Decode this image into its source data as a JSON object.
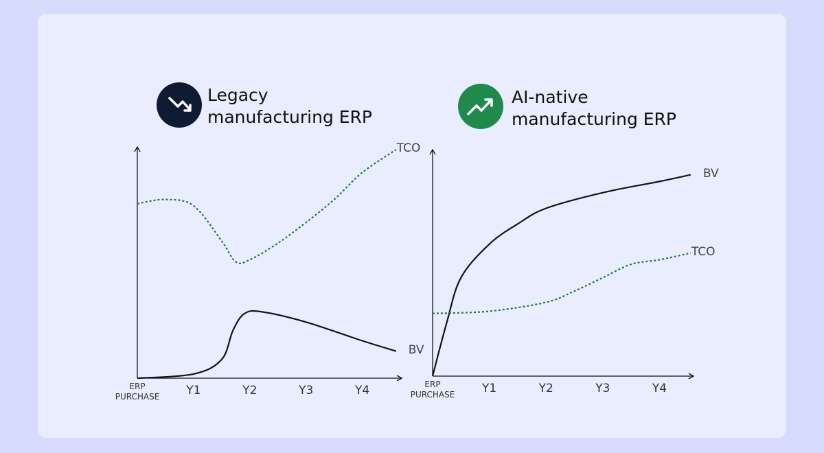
{
  "chart_data": [
    {
      "type": "line",
      "title": "Legacy manufacturing ERP",
      "xlim": [
        0,
        4.7
      ],
      "ylim": [
        0,
        110
      ],
      "xticks": [
        {
          "value": 0,
          "label": "ERP PURCHASE"
        },
        {
          "value": 1,
          "label": "Y1"
        },
        {
          "value": 2,
          "label": "Y2"
        },
        {
          "value": 3,
          "label": "Y3"
        },
        {
          "value": 4,
          "label": "Y4"
        }
      ],
      "series": [
        {
          "name": "TCO",
          "color": "#1e7a3e",
          "dashed": true,
          "x": [
            0,
            0.5,
            1.0,
            1.5,
            1.75,
            2.0,
            2.5,
            3.0,
            3.5,
            4.0,
            4.6
          ],
          "values": [
            84,
            86,
            83,
            66,
            56,
            57,
            65,
            75,
            86,
            99,
            110
          ]
        },
        {
          "name": "BV",
          "color": "#141414",
          "dashed": false,
          "x": [
            0,
            1.0,
            1.5,
            1.7,
            1.9,
            2.2,
            3.0,
            4.0,
            4.6
          ],
          "values": [
            0,
            2,
            9,
            23,
            31,
            32,
            27,
            18,
            13
          ]
        }
      ]
    },
    {
      "type": "line",
      "title": "AI-native manufacturing ERP",
      "xlim": [
        0,
        4.6
      ],
      "ylim": [
        0,
        100
      ],
      "xticks": [
        {
          "value": 0,
          "label": "ERP PURCHASE"
        },
        {
          "value": 1,
          "label": "Y1"
        },
        {
          "value": 2,
          "label": "Y2"
        },
        {
          "value": 3,
          "label": "Y3"
        },
        {
          "value": 4,
          "label": "Y4"
        }
      ],
      "series": [
        {
          "name": "BV",
          "color": "#141414",
          "dashed": false,
          "x": [
            0,
            0.25,
            0.5,
            1.0,
            1.5,
            2.0,
            3.0,
            4.0,
            4.55
          ],
          "values": [
            0,
            24,
            44,
            59,
            68,
            75,
            82,
            87,
            90
          ]
        },
        {
          "name": "TCO",
          "color": "#1e7a3e",
          "dashed": true,
          "x": [
            0,
            1.0,
            2.0,
            2.5,
            3.0,
            3.5,
            4.0,
            4.55
          ],
          "values": [
            28,
            29,
            33,
            38,
            44,
            50,
            52,
            55
          ]
        }
      ]
    }
  ]
}
